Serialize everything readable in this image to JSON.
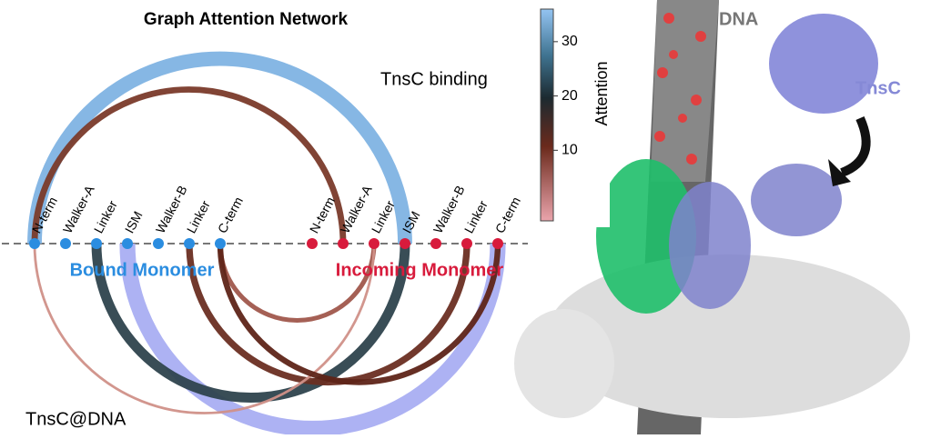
{
  "title": "Graph Attention Network",
  "upper_label": "TnsC binding",
  "lower_label": "TnsC@DNA",
  "groups": [
    {
      "name": "Bound Monomer",
      "color": "#2b8de0",
      "nodes": [
        "N-term",
        "Walker-A",
        "Linker",
        "ISM",
        "Walker-B",
        "Linker",
        "C-term"
      ]
    },
    {
      "name": "Incoming Monomer",
      "color": "#d81b3c",
      "nodes": [
        "N-term",
        "Walker-A",
        "Linker",
        "ISM",
        "Walker-B",
        "Linker",
        "C-term"
      ]
    }
  ],
  "edges": [
    {
      "from": [
        0,
        0
      ],
      "to": [
        1,
        3
      ],
      "side": "upper",
      "attention": 33,
      "color": "#7fb3e3"
    },
    {
      "from": [
        0,
        0
      ],
      "to": [
        1,
        1
      ],
      "side": "upper",
      "attention": 13,
      "color": "#7a3a2a"
    },
    {
      "from": [
        0,
        3
      ],
      "to": [
        1,
        6
      ],
      "side": "lower",
      "attention": 36,
      "color": "#a9aef2"
    },
    {
      "from": [
        0,
        2
      ],
      "to": [
        1,
        3
      ],
      "side": "lower",
      "attention": 22,
      "color": "#2e434d"
    },
    {
      "from": [
        0,
        5
      ],
      "to": [
        1,
        5
      ],
      "side": "lower",
      "attention": 14,
      "color": "#6a2e22"
    },
    {
      "from": [
        0,
        6
      ],
      "to": [
        1,
        2
      ],
      "side": "lower",
      "attention": 9,
      "color": "#a0574c"
    },
    {
      "from": [
        0,
        0
      ],
      "to": [
        1,
        2
      ],
      "side": "lower",
      "attention": 4,
      "color": "#d09088"
    },
    {
      "from": [
        0,
        6
      ],
      "to": [
        1,
        6
      ],
      "side": "lower",
      "attention": 12,
      "color": "#5e2418"
    }
  ],
  "colorbar": {
    "label": "Attention",
    "lim": [
      -3,
      36
    ],
    "ticks": [
      10,
      20,
      30
    ]
  },
  "image_labels": {
    "dna": "DNA",
    "tnsc": "TnsC"
  }
}
